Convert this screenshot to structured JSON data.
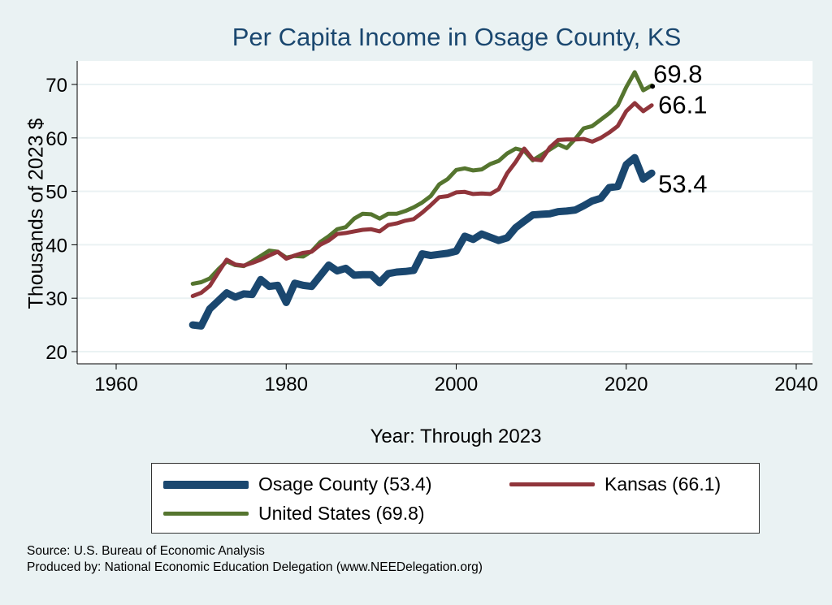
{
  "chart_data": {
    "type": "line",
    "title": "Per Capita Income in Osage County, KS",
    "xlabel": "Year: Through 2023",
    "ylabel": "Thousands of 2023 $",
    "xlim": [
      1960,
      2040
    ],
    "ylim": [
      20,
      70
    ],
    "xticks": [
      "1960",
      "1980",
      "2000",
      "2020",
      "2040"
    ],
    "yticks": [
      "20",
      "30",
      "40",
      "50",
      "60",
      "70"
    ],
    "grid": true,
    "legend_position": "bottom",
    "x": [
      1969,
      1970,
      1971,
      1972,
      1973,
      1974,
      1975,
      1976,
      1977,
      1978,
      1979,
      1980,
      1981,
      1982,
      1983,
      1984,
      1985,
      1986,
      1987,
      1988,
      1989,
      1990,
      1991,
      1992,
      1993,
      1994,
      1995,
      1996,
      1997,
      1998,
      1999,
      2000,
      2001,
      2002,
      2003,
      2004,
      2005,
      2006,
      2007,
      2008,
      2009,
      2010,
      2011,
      2012,
      2013,
      2014,
      2015,
      2016,
      2017,
      2018,
      2019,
      2020,
      2021,
      2022,
      2023
    ],
    "series": [
      {
        "name": "Osage County (53.4)",
        "color": "#1a476f",
        "end_label": "53.4",
        "values": [
          25,
          24.8,
          28,
          29.5,
          31,
          30.2,
          30.8,
          30.7,
          33.5,
          32.2,
          32.4,
          29.2,
          32.8,
          32.4,
          32.2,
          34.2,
          36.2,
          35.1,
          35.6,
          34.3,
          34.4,
          34.4,
          32.9,
          34.6,
          34.9,
          35,
          35.2,
          38.3,
          38,
          38.2,
          38.4,
          38.8,
          41.6,
          41,
          42,
          41.4,
          40.8,
          41.3,
          43.2,
          44.4,
          45.6,
          45.7,
          45.8,
          46.2,
          46.3,
          46.5,
          47.3,
          48.2,
          48.7,
          50.7,
          50.9,
          55,
          56.3,
          52.3,
          53.4
        ]
      },
      {
        "name": "Kansas (66.1)",
        "color": "#90353b",
        "end_label": "66.1",
        "values": [
          30.4,
          31,
          32.3,
          34.8,
          37.2,
          36.3,
          36.1,
          36.6,
          37.2,
          38,
          38.7,
          37.4,
          38,
          38.5,
          38.7,
          40,
          40.8,
          42,
          42.2,
          42.5,
          42.8,
          42.9,
          42.5,
          43.7,
          44,
          44.5,
          44.8,
          46,
          47.4,
          48.9,
          49.1,
          49.8,
          49.9,
          49.5,
          49.6,
          49.5,
          50.4,
          53.4,
          55.5,
          58,
          56,
          55.8,
          58.2,
          59.6,
          59.7,
          59.7,
          59.8,
          59.3,
          60,
          61,
          62.2,
          65,
          66.5,
          65,
          66.1
        ]
      },
      {
        "name": "United States (69.8)",
        "color": "#55752f",
        "end_label": "69.8",
        "values": [
          32.7,
          33,
          33.7,
          35.4,
          36.9,
          36.2,
          36,
          36.9,
          37.9,
          38.9,
          38.7,
          37.6,
          37.9,
          37.8,
          38.8,
          40.5,
          41.6,
          42.9,
          43.3,
          44.9,
          45.8,
          45.7,
          44.9,
          45.8,
          45.8,
          46.3,
          47,
          47.9,
          49.1,
          51.3,
          52.3,
          54,
          54.3,
          53.9,
          54.1,
          55.1,
          55.7,
          57.1,
          58,
          57.6,
          55.8,
          56.8,
          57.8,
          58.8,
          58.1,
          59.8,
          61.8,
          62.2,
          63.4,
          64.6,
          66.1,
          69.5,
          72.3,
          68.9,
          69.8
        ]
      }
    ]
  },
  "notes": {
    "source": "Source: U.S. Bureau of Economic Analysis",
    "produced": "Produced by: National Economic Education Delegation (www.NEEDelegation.org)"
  }
}
